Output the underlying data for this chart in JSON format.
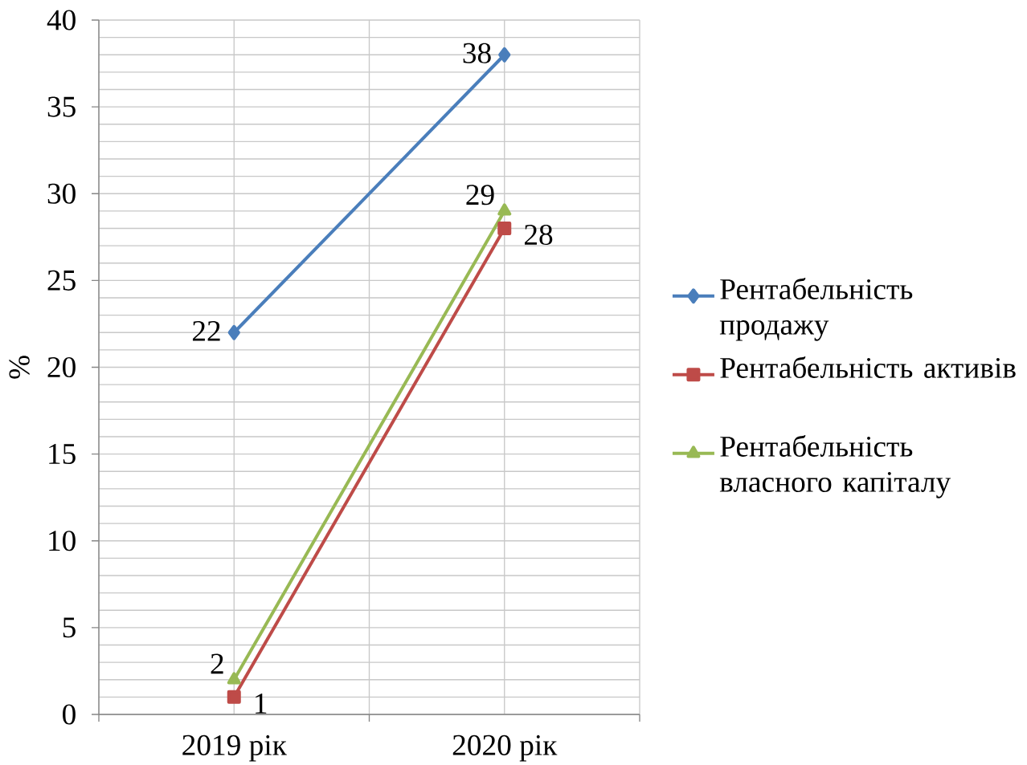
{
  "chart_data": {
    "type": "line",
    "ylabel": "%",
    "categories": [
      "2019 рік",
      "2020 рік"
    ],
    "series": [
      {
        "name": "Рентабельність продажу",
        "color": "#4a7ebb",
        "values": [
          22,
          38
        ],
        "marker": "diamond"
      },
      {
        "name": "Рентабельність активів",
        "color": "#be4b48",
        "values": [
          1,
          28
        ],
        "marker": "square"
      },
      {
        "name": "Рентабельність власного капіталу",
        "color": "#98b954",
        "values": [
          2,
          29
        ],
        "marker": "triangle"
      }
    ],
    "ylim": [
      0,
      40
    ],
    "yticks": [
      0,
      5,
      10,
      15,
      20,
      25,
      30,
      35,
      40
    ],
    "grid": true,
    "legend": "right",
    "data_labels": true,
    "line_style": "solid"
  }
}
